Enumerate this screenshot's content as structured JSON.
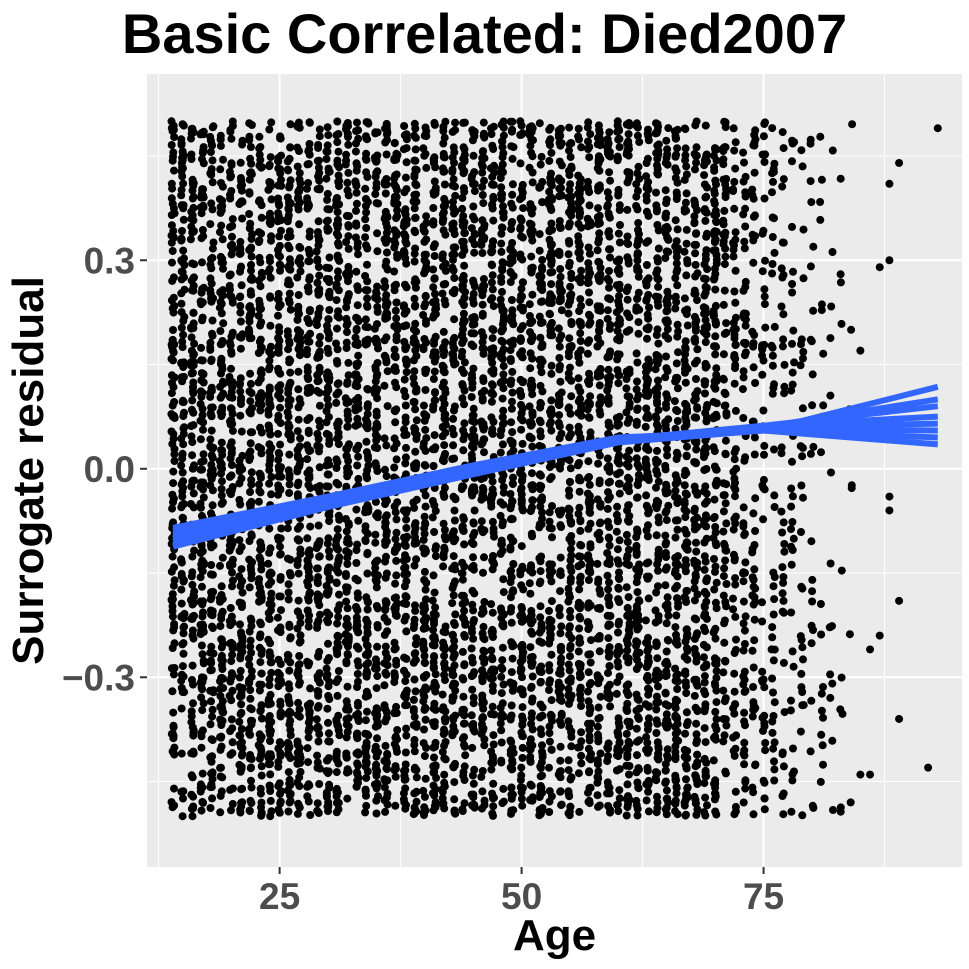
{
  "chart_data": {
    "type": "scatter",
    "title": "Basic Correlated: Died2007",
    "xlabel": "Age",
    "ylabel": "Surrogate residual",
    "xlim": [
      11.3,
      95.5
    ],
    "ylim": [
      -0.573,
      0.568
    ],
    "x_ticks": [
      25,
      50,
      75
    ],
    "x_tick_labels": [
      "25",
      "50",
      "75"
    ],
    "y_ticks": [
      -0.3,
      0.0,
      0.3
    ],
    "y_tick_labels": [
      "−0.3",
      "0.0",
      "0.3"
    ],
    "grid": true,
    "legend": "none",
    "colors": {
      "panel": "#ebebeb",
      "grid": "#ffffff",
      "points": "#000000",
      "smooth": "#3366ff",
      "tick_text": "#4d4d4d"
    },
    "points_note_values": {
      "x_range": [
        14,
        93
      ],
      "y_range": [
        -0.5,
        0.5
      ]
    },
    "sample_outliers": [
      {
        "x": 93,
        "y": 0.49
      },
      {
        "x": 92,
        "y": -0.43
      },
      {
        "x": 89,
        "y": 0.44
      },
      {
        "x": 88,
        "y": 0.41
      },
      {
        "x": 88,
        "y": 0.3
      },
      {
        "x": 89,
        "y": -0.19
      },
      {
        "x": 89,
        "y": -0.36
      },
      {
        "x": 87,
        "y": -0.24
      },
      {
        "x": 88,
        "y": -0.06
      },
      {
        "x": 88,
        "y": -0.04
      },
      {
        "x": 87,
        "y": 0.29
      },
      {
        "x": 86,
        "y": -0.44
      },
      {
        "x": 85,
        "y": -0.44
      },
      {
        "x": 86,
        "y": -0.26
      },
      {
        "x": 85,
        "y": 0.17
      },
      {
        "x": 84,
        "y": -0.48
      }
    ],
    "smooth_lines": [
      {
        "x": [
          14,
          30,
          45,
          60,
          75,
          93
        ],
        "y": [
          -0.085,
          -0.04,
          0.005,
          0.045,
          0.055,
          0.118
        ]
      },
      {
        "x": [
          14,
          30,
          45,
          60,
          75,
          93
        ],
        "y": [
          -0.09,
          -0.045,
          0.0,
          0.04,
          0.06,
          0.1
        ]
      },
      {
        "x": [
          14,
          30,
          45,
          60,
          75,
          93
        ],
        "y": [
          -0.095,
          -0.045,
          0.0,
          0.042,
          0.062,
          0.09
        ]
      },
      {
        "x": [
          14,
          30,
          45,
          60,
          75,
          93
        ],
        "y": [
          -0.1,
          -0.05,
          -0.002,
          0.04,
          0.062,
          0.075
        ]
      },
      {
        "x": [
          14,
          30,
          45,
          60,
          75,
          93
        ],
        "y": [
          -0.105,
          -0.05,
          -0.005,
          0.04,
          0.06,
          0.065
        ]
      },
      {
        "x": [
          14,
          30,
          45,
          60,
          75,
          93
        ],
        "y": [
          -0.11,
          -0.055,
          -0.005,
          0.042,
          0.058,
          0.055
        ]
      },
      {
        "x": [
          14,
          30,
          45,
          60,
          75,
          93
        ],
        "y": [
          -0.112,
          -0.055,
          -0.008,
          0.038,
          0.055,
          0.045
        ]
      },
      {
        "x": [
          14,
          30,
          45,
          60,
          75,
          93
        ],
        "y": [
          -0.1,
          -0.048,
          -0.002,
          0.04,
          0.055,
          0.035
        ]
      }
    ]
  }
}
